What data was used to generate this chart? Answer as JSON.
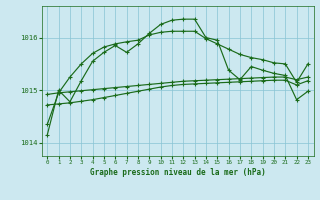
{
  "title": "Graphe pression niveau de la mer (hPa)",
  "background_color": "#cce8f0",
  "grid_color": "#88c4d4",
  "line_color": "#1a6b1a",
  "xlim": [
    -0.5,
    23.5
  ],
  "ylim": [
    1013.75,
    1016.6
  ],
  "yticks": [
    1014,
    1015,
    1016
  ],
  "xticks": [
    0,
    1,
    2,
    3,
    4,
    5,
    6,
    7,
    8,
    9,
    10,
    11,
    12,
    13,
    14,
    15,
    16,
    17,
    18,
    19,
    20,
    21,
    22,
    23
  ],
  "series1_x": [
    0,
    1,
    2,
    3,
    4,
    5,
    6,
    7,
    8,
    9,
    10,
    11,
    12,
    13,
    14,
    15,
    16,
    17,
    18,
    19,
    20,
    21,
    22,
    23
  ],
  "series1_y": [
    1014.35,
    1014.95,
    1015.25,
    1015.5,
    1015.7,
    1015.82,
    1015.88,
    1015.92,
    1015.95,
    1016.05,
    1016.1,
    1016.12,
    1016.12,
    1016.12,
    1015.98,
    1015.88,
    1015.78,
    1015.68,
    1015.62,
    1015.58,
    1015.52,
    1015.5,
    1015.15,
    1015.5
  ],
  "series2_x": [
    0,
    1,
    2,
    3,
    4,
    5,
    6,
    7,
    8,
    9,
    10,
    11,
    12,
    13,
    14,
    15,
    16,
    17,
    18,
    19,
    20,
    21,
    22,
    23
  ],
  "series2_y": [
    1014.92,
    1014.95,
    1014.97,
    1014.99,
    1015.01,
    1015.03,
    1015.05,
    1015.07,
    1015.09,
    1015.11,
    1015.13,
    1015.15,
    1015.17,
    1015.18,
    1015.19,
    1015.2,
    1015.21,
    1015.22,
    1015.23,
    1015.24,
    1015.25,
    1015.25,
    1015.2,
    1015.25
  ],
  "series3_x": [
    0,
    1,
    2,
    3,
    4,
    5,
    6,
    7,
    8,
    9,
    10,
    11,
    12,
    13,
    14,
    15,
    16,
    17,
    18,
    19,
    20,
    21,
    22,
    23
  ],
  "series3_y": [
    1014.72,
    1014.74,
    1014.76,
    1014.79,
    1014.82,
    1014.86,
    1014.9,
    1014.94,
    1014.98,
    1015.02,
    1015.06,
    1015.09,
    1015.11,
    1015.12,
    1015.13,
    1015.14,
    1015.15,
    1015.16,
    1015.17,
    1015.18,
    1015.19,
    1015.19,
    1015.1,
    1015.18
  ],
  "jagged_x": [
    0,
    1,
    2,
    3,
    4,
    5,
    6,
    7,
    8,
    9,
    10,
    11,
    12,
    13,
    14,
    15,
    16,
    17,
    18,
    19,
    20,
    21,
    22,
    23
  ],
  "jagged_y": [
    1014.15,
    1015.0,
    1014.78,
    1015.18,
    1015.55,
    1015.72,
    1015.85,
    1015.72,
    1015.88,
    1016.08,
    1016.25,
    1016.33,
    1016.35,
    1016.35,
    1016.0,
    1015.95,
    1015.38,
    1015.2,
    1015.45,
    1015.38,
    1015.32,
    1015.28,
    1014.82,
    1014.98
  ]
}
